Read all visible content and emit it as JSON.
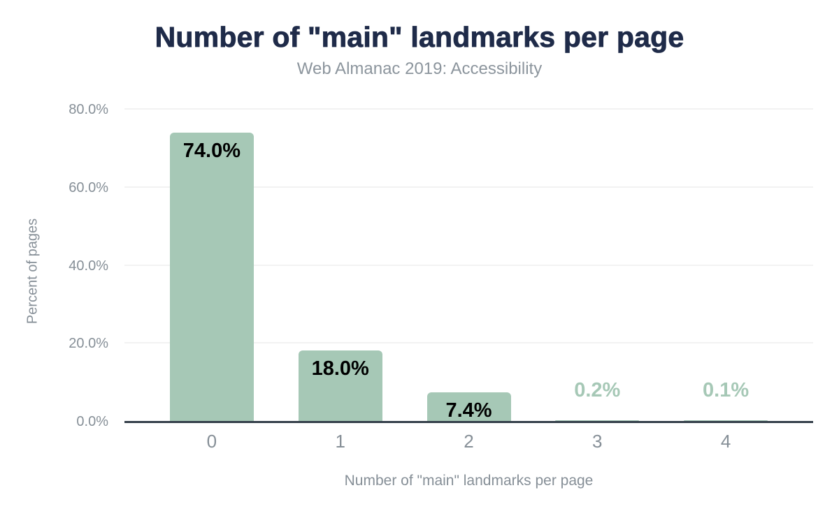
{
  "chart_data": {
    "type": "bar",
    "title": "Number of \"main\" landmarks per page",
    "subtitle": "Web Almanac 2019: Accessibility",
    "categories": [
      "0",
      "1",
      "2",
      "3",
      "4"
    ],
    "values": [
      74.0,
      18.0,
      7.4,
      0.2,
      0.1
    ],
    "value_labels": [
      "74.0%",
      "18.0%",
      "7.4%",
      "0.2%",
      "0.1%"
    ],
    "xlabel": "Number of \"main\" landmarks per page",
    "ylabel": "Percent of pages",
    "ylim": [
      0,
      80
    ],
    "yticks": [
      0,
      20,
      40,
      60,
      80
    ],
    "ytick_labels": [
      "0.0%",
      "20.0%",
      "40.0%",
      "60.0%",
      "80.0%"
    ],
    "grid": true,
    "legend": "none",
    "colors": {
      "bar": "#a6c8b6",
      "label_inside": "#000000",
      "label_outside": "#a6c8b6",
      "title": "#1f2b49",
      "subtitle": "#8c959d",
      "axis_text": "#868f97",
      "grid": "#f2f2f2",
      "axis_line": "#343f4a",
      "background": "#ffffff"
    }
  }
}
